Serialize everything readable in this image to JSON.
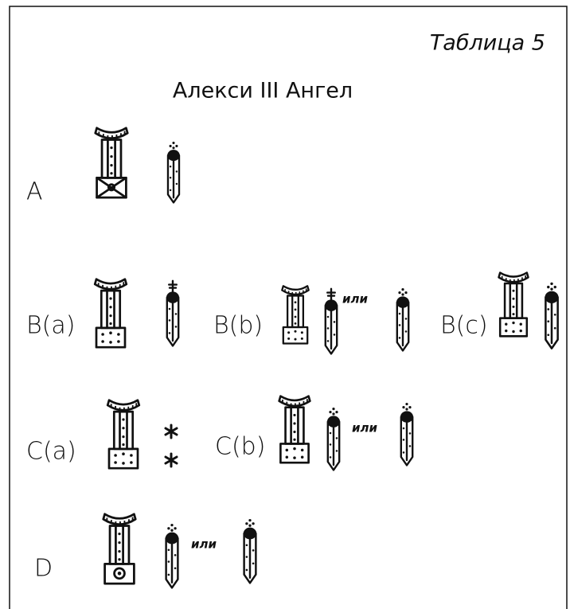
{
  "header": {
    "table_label": "Таблица 5",
    "title": "Алекси III Ангел"
  },
  "rows": [
    {
      "label": "A"
    },
    {
      "variants": [
        {
          "label": "B(a)"
        },
        {
          "label": "B(b)",
          "connector": "или"
        },
        {
          "label": "B(c)"
        }
      ]
    },
    {
      "variants": [
        {
          "label": "C(a)"
        },
        {
          "label": "C(b)",
          "connector": "или"
        }
      ]
    },
    {
      "label": "D",
      "connector": "или"
    }
  ]
}
